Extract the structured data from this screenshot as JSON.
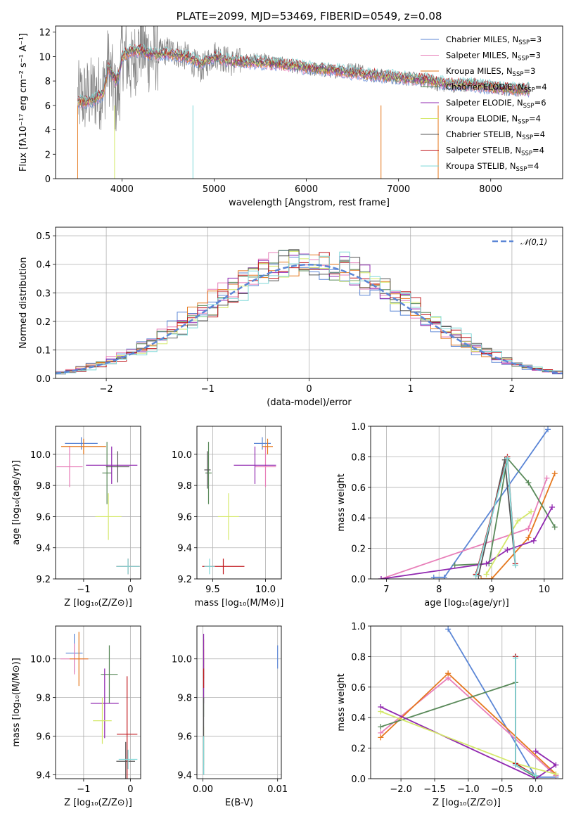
{
  "chart_data": [
    {
      "type": "line",
      "title": "PLATE=2099, MJD=53469, FIBERID=0549, z=0.08",
      "xlabel": "wavelength [Angstrom, rest frame]",
      "ylabel": "Flux [fλ10⁻¹⁷ erg cm⁻² s⁻¹ A⁻¹]",
      "xlim": [
        3280,
        8780
      ],
      "ylim": [
        0,
        12.5
      ],
      "xticks": [
        4000,
        5000,
        6000,
        7000,
        8000
      ],
      "yticks": [
        0,
        2,
        4,
        6,
        8,
        10,
        12
      ],
      "grid": false,
      "legend_position": "upper right",
      "legend": [
        "Chabrier MILES, N_SSP=3",
        "Salpeter MILES, N_SSP=3",
        "Kroupa MILES, N_SSP=3",
        "Chabrier ELODIE, N_SSP=4",
        "Salpeter ELODIE, N_SSP=6",
        "Kroupa ELODIE, N_SSP=4",
        "Chabrier STELIB, N_SSP=4",
        "Salpeter STELIB, N_SSP=4",
        "Kroupa STELIB, N_SSP=4"
      ],
      "legend_labels": [
        {
          "pre": "Chabrier MILES, N",
          "sub": "SSP",
          "post": "=3"
        },
        {
          "pre": "Salpeter MILES, N",
          "sub": "SSP",
          "post": "=3"
        },
        {
          "pre": "Kroupa MILES, N",
          "sub": "SSP",
          "post": "=3"
        },
        {
          "pre": "Chabrier ELODIE, N",
          "sub": "SSP",
          "post": "=4"
        },
        {
          "pre": "Salpeter ELODIE, N",
          "sub": "SSP",
          "post": "=6"
        },
        {
          "pre": "Kroupa ELODIE, N",
          "sub": "SSP",
          "post": "=4"
        },
        {
          "pre": "Chabrier STELIB, N",
          "sub": "SSP",
          "post": "=4"
        },
        {
          "pre": "Salpeter STELIB, N",
          "sub": "SSP",
          "post": "=4"
        },
        {
          "pre": "Kroupa STELIB, N",
          "sub": "SSP",
          "post": "=4"
        }
      ],
      "colors": [
        "#5b86d6",
        "#e87fb9",
        "#e5781e",
        "#5a8a5a",
        "#9028b0",
        "#d4e86a",
        "#555555",
        "#c0161c",
        "#7fd8d8"
      ],
      "observed_color": "#808080",
      "observed_knots": [
        [
          3520,
          6.5
        ],
        [
          3700,
          7.0
        ],
        [
          3800,
          7.2
        ],
        [
          3850,
          9.5
        ],
        [
          3933,
          6.5
        ],
        [
          3968,
          7.0
        ],
        [
          4000,
          10.5
        ],
        [
          4102,
          9.0
        ],
        [
          4200,
          11.0
        ],
        [
          4300,
          10.0
        ],
        [
          4500,
          10.5
        ],
        [
          4700,
          10.0
        ],
        [
          4861,
          9.0
        ],
        [
          5000,
          10.2
        ],
        [
          5200,
          9.5
        ],
        [
          5500,
          9.8
        ],
        [
          5800,
          9.3
        ],
        [
          6000,
          9.0
        ],
        [
          6300,
          8.8
        ],
        [
          6563,
          9.0
        ],
        [
          6700,
          8.5
        ],
        [
          7000,
          8.3
        ],
        [
          7300,
          8.0
        ],
        [
          7500,
          7.6
        ],
        [
          7800,
          7.7
        ],
        [
          8100,
          7.4
        ],
        [
          8300,
          7.3
        ],
        [
          8420,
          7.4
        ]
      ],
      "model_knots": [
        [
          3520,
          6.2
        ],
        [
          3700,
          6.5
        ],
        [
          3800,
          7.0
        ],
        [
          3850,
          9.2
        ],
        [
          3933,
          8.0
        ],
        [
          3968,
          8.5
        ],
        [
          4000,
          10.0
        ],
        [
          4102,
          10.5
        ],
        [
          4200,
          10.5
        ],
        [
          4300,
          10.2
        ],
        [
          4500,
          10.2
        ],
        [
          4700,
          10.0
        ],
        [
          4861,
          9.5
        ],
        [
          5000,
          10.0
        ],
        [
          5200,
          9.6
        ],
        [
          5500,
          9.5
        ],
        [
          5800,
          9.3
        ],
        [
          6000,
          9.1
        ],
        [
          6300,
          8.9
        ],
        [
          6563,
          8.6
        ],
        [
          6700,
          8.5
        ],
        [
          7000,
          8.3
        ],
        [
          7300,
          8.1
        ],
        [
          7500,
          7.8
        ],
        [
          7800,
          7.7
        ],
        [
          8100,
          7.4
        ],
        [
          8300,
          7.3
        ],
        [
          8420,
          7.3
        ]
      ],
      "model_drops": [
        [
          3520,
          0
        ],
        [
          3920,
          0
        ],
        [
          4770,
          0
        ],
        [
          6810,
          0
        ],
        [
          7430,
          0
        ]
      ]
    },
    {
      "type": "bar",
      "xlabel": "(data-model)/error",
      "ylabel": "Normed distribution",
      "xlim": [
        -2.5,
        2.5
      ],
      "ylim": [
        0,
        0.53
      ],
      "xticks": [
        -2,
        -1,
        0,
        1,
        2
      ],
      "xtick_labels": [
        "−2",
        "−1",
        "0",
        "1",
        "2"
      ],
      "yticks": [
        0,
        0.1,
        0.2,
        0.3,
        0.4,
        0.5
      ],
      "ytick_labels": [
        "0.0",
        "0.1",
        "0.2",
        "0.3",
        "0.4",
        "0.5"
      ],
      "grid": true,
      "legend_position": "upper right",
      "legend_label": "𝒩(0,1)",
      "gaussian_color": "#5b86d6",
      "bin_width": 0.1,
      "histogram_series": 9
    },
    {
      "type": "scatter",
      "xlabel": "Z [log₁₀(Z/Z⊙)]",
      "ylabel": "age  [log₁₀(age/yr)]",
      "xlim": [
        -1.6,
        0.22
      ],
      "ylim": [
        9.2,
        10.18
      ],
      "xticks": [
        -1,
        0
      ],
      "xtick_labels": [
        "−1",
        "0"
      ],
      "yticks": [
        9.2,
        9.4,
        9.6,
        9.8,
        10.0
      ],
      "ytick_labels": [
        "9.2",
        "9.4",
        "9.6",
        "9.8",
        "10.0"
      ],
      "grid": true,
      "errorbars": [
        {
          "x": -1.05,
          "xerr": 0.35,
          "y": 10.07,
          "yerr": 0.04,
          "series": 0
        },
        {
          "x": -1.3,
          "xerr": 0.28,
          "y": 9.92,
          "yerr": 0.13,
          "series": 1
        },
        {
          "x": -1.0,
          "xerr": 0.48,
          "y": 10.05,
          "yerr": 0.05,
          "series": 2
        },
        {
          "x": -0.5,
          "xerr": 0.1,
          "y": 9.88,
          "yerr": 0.2,
          "series": 3
        },
        {
          "x": -0.4,
          "xerr": 0.55,
          "y": 9.93,
          "yerr": 0.12,
          "series": 4
        },
        {
          "x": -0.47,
          "xerr": 0.28,
          "y": 9.6,
          "yerr": 0.15,
          "series": 5
        },
        {
          "x": -0.27,
          "xerr": 0.25,
          "y": 9.92,
          "yerr": 0.1,
          "series": 6
        },
        {
          "x": -0.05,
          "xerr": 0.25,
          "y": 9.28,
          "yerr": 0.05,
          "series": 7
        },
        {
          "x": -0.05,
          "xerr": 0.25,
          "y": 9.28,
          "yerr": 0.05,
          "series": 8
        }
      ]
    },
    {
      "type": "scatter",
      "xlabel": "mass [log₁₀(M/M⊙)]",
      "xlim": [
        9.35,
        10.15
      ],
      "ylim": [
        9.2,
        10.18
      ],
      "xticks": [
        9.5,
        10.0
      ],
      "xtick_labels": [
        "9.5",
        "10.0"
      ],
      "yticks": [
        9.2,
        9.4,
        9.6,
        9.8,
        10.0
      ],
      "ytick_labels": [
        "9.2",
        "9.4",
        "9.6",
        "9.8",
        "10.0"
      ],
      "grid": true,
      "errorbars": [
        {
          "x": 9.97,
          "xerr": 0.08,
          "y": 10.07,
          "yerr": 0.04,
          "series": 0
        },
        {
          "x": 10.0,
          "xerr": 0.1,
          "y": 9.92,
          "yerr": 0.13,
          "series": 1
        },
        {
          "x": 10.02,
          "xerr": 0.05,
          "y": 10.05,
          "yerr": 0.05,
          "series": 2
        },
        {
          "x": 9.46,
          "xerr": 0.03,
          "y": 9.88,
          "yerr": 0.2,
          "series": 3
        },
        {
          "x": 9.9,
          "xerr": 0.2,
          "y": 9.93,
          "yerr": 0.12,
          "series": 4
        },
        {
          "x": 9.65,
          "xerr": 0.1,
          "y": 9.6,
          "yerr": 0.15,
          "series": 5
        },
        {
          "x": 9.45,
          "xerr": 0.03,
          "y": 9.9,
          "yerr": 0.12,
          "series": 6
        },
        {
          "x": 9.6,
          "xerr": 0.2,
          "y": 9.28,
          "yerr": 0.05,
          "series": 7
        },
        {
          "x": 9.47,
          "xerr": 0.05,
          "y": 9.28,
          "yerr": 0.05,
          "series": 8
        }
      ]
    },
    {
      "type": "line",
      "xlabel": "age  [log₁₀(age/yr)]",
      "ylabel": "mass weight",
      "xlim": [
        6.7,
        10.35
      ],
      "ylim": [
        0,
        1
      ],
      "xticks": [
        7,
        8,
        9,
        10
      ],
      "xtick_labels": [
        "7",
        "8",
        "9",
        "10"
      ],
      "yticks": [
        0,
        0.2,
        0.4,
        0.6,
        0.8,
        1.0
      ],
      "ytick_labels": [
        "0.0",
        "0.2",
        "0.4",
        "0.6",
        "0.8",
        "1.0"
      ],
      "grid": true,
      "series": [
        {
          "x": [
            7.9,
            8.1,
            10.07
          ],
          "y": [
            0.01,
            0.01,
            0.98
          ]
        },
        {
          "x": [
            6.9,
            9.7,
            10.05
          ],
          "y": [
            0.0,
            0.33,
            0.66
          ]
        },
        {
          "x": [
            8.8,
            9.0,
            9.7,
            10.2
          ],
          "y": [
            0.0,
            0.0,
            0.27,
            0.69
          ]
        },
        {
          "x": [
            8.3,
            8.95,
            9.3,
            9.7,
            10.2
          ],
          "y": [
            0.09,
            0.1,
            0.79,
            0.63,
            0.34
          ]
        },
        {
          "x": [
            6.9,
            8.9,
            9.3,
            9.8,
            10.15
          ],
          "y": [
            0.0,
            0.1,
            0.19,
            0.25,
            0.47
          ]
        },
        {
          "x": [
            8.9,
            9.5,
            9.75
          ],
          "y": [
            0.03,
            0.38,
            0.44
          ]
        },
        {
          "x": [
            8.75,
            9.25,
            9.45
          ],
          "y": [
            0.02,
            0.78,
            0.09
          ]
        },
        {
          "x": [
            8.7,
            9.3,
            9.45
          ],
          "y": [
            0.03,
            0.8,
            0.1
          ]
        },
        {
          "x": [
            8.7,
            9.3,
            9.45
          ],
          "y": [
            0.02,
            0.79,
            0.09
          ]
        }
      ]
    },
    {
      "type": "scatter",
      "xlabel": "Z [log₁₀(Z/Z⊙)]",
      "ylabel": "mass [log₁₀(M/M⊙)]",
      "xlim": [
        -1.6,
        0.22
      ],
      "ylim": [
        9.38,
        10.17
      ],
      "xticks": [
        -1,
        0
      ],
      "xtick_labels": [
        "−1",
        "0"
      ],
      "yticks": [
        9.4,
        9.6,
        9.8,
        10.0
      ],
      "ytick_labels": [
        "9.4",
        "9.6",
        "9.8",
        "10.0"
      ],
      "grid": true,
      "errorbars": [
        {
          "x": -1.2,
          "xerr": 0.18,
          "y": 10.03,
          "yerr": 0.1,
          "series": 0
        },
        {
          "x": -1.2,
          "xerr": 0.3,
          "y": 10.0,
          "yerr": 0.08,
          "series": 1
        },
        {
          "x": -1.1,
          "xerr": 0.2,
          "y": 10.0,
          "yerr": 0.14,
          "series": 2
        },
        {
          "x": -0.45,
          "xerr": 0.18,
          "y": 9.92,
          "yerr": 0.15,
          "series": 3
        },
        {
          "x": -0.55,
          "xerr": 0.3,
          "y": 9.77,
          "yerr": 0.18,
          "series": 4
        },
        {
          "x": -0.6,
          "xerr": 0.2,
          "y": 9.68,
          "yerr": 0.12,
          "series": 5
        },
        {
          "x": -0.1,
          "xerr": 0.2,
          "y": 9.47,
          "yerr": 0.1,
          "series": 6
        },
        {
          "x": -0.07,
          "xerr": 0.22,
          "y": 9.61,
          "yerr": 0.3,
          "series": 7
        },
        {
          "x": -0.05,
          "xerr": 0.2,
          "y": 9.48,
          "yerr": 0.05,
          "series": 8
        }
      ]
    },
    {
      "type": "scatter",
      "xlabel": "E(B-V)",
      "xlim": [
        -0.0008,
        0.0105
      ],
      "ylim": [
        9.38,
        10.17
      ],
      "xticks": [
        0.0,
        0.01
      ],
      "xtick_labels": [
        "0.00",
        "0.01"
      ],
      "yticks": [
        9.4,
        9.6,
        9.8,
        10.0
      ],
      "ytick_labels": [
        "9.4",
        "9.6",
        "9.8",
        "10.0"
      ],
      "grid": true,
      "errorbars": [
        {
          "x": 0.01,
          "y": 10.01,
          "yerr": 0.06,
          "series": 0
        },
        {
          "x": 0.0001,
          "y": 9.95,
          "yerr": 0.1,
          "series": 1
        },
        {
          "x": 0.0001,
          "y": 10.0,
          "yerr": 0.1,
          "series": 2
        },
        {
          "x": 0.0001,
          "y": 9.85,
          "yerr": 0.15,
          "series": 3
        },
        {
          "x": 0.0001,
          "y": 9.95,
          "yerr": 0.18,
          "series": 4
        },
        {
          "x": 0.0001,
          "y": 9.55,
          "yerr": 0.1,
          "series": 5
        },
        {
          "x": 0.0001,
          "y": 9.6,
          "yerr": 0.2,
          "series": 6
        },
        {
          "x": 0.0001,
          "y": 9.9,
          "yerr": 0.05,
          "series": 7
        },
        {
          "x": 0.0001,
          "y": 9.5,
          "yerr": 0.1,
          "series": 8
        }
      ]
    },
    {
      "type": "line",
      "xlabel": "Z [log₁₀(Z/Z⊙)]",
      "ylabel": "mass weight",
      "xlim": [
        -2.45,
        0.4
      ],
      "ylim": [
        0,
        1
      ],
      "xticks": [
        -2.0,
        -1.5,
        -1.0,
        -0.5,
        0.0
      ],
      "xtick_labels": [
        "−2.0",
        "−1.5",
        "−1.0",
        "−0.5",
        "0.0"
      ],
      "yticks": [
        0,
        0.2,
        0.4,
        0.6,
        0.8,
        1.0
      ],
      "ytick_labels": [
        "0.0",
        "0.2",
        "0.4",
        "0.6",
        "0.8",
        "1.0"
      ],
      "grid": true,
      "series": [
        {
          "x": [
            -1.3,
            0.0,
            0.3
          ],
          "y": [
            0.98,
            0.01,
            0.01
          ]
        },
        {
          "x": [
            -2.3,
            -1.3,
            0.3
          ],
          "y": [
            0.3,
            0.66,
            0.02
          ]
        },
        {
          "x": [
            -2.3,
            -1.3,
            0.3
          ],
          "y": [
            0.27,
            0.69,
            0.03
          ]
        },
        {
          "x": [
            -2.3,
            -0.3,
            -0.3,
            0.0
          ],
          "y": [
            0.34,
            0.63,
            0.09,
            0.01
          ]
        },
        {
          "x": [
            -2.3,
            0.0,
            0.3,
            0.0
          ],
          "y": [
            0.47,
            0.0,
            0.09,
            0.18
          ]
        },
        {
          "x": [
            -2.3,
            -0.3,
            0.3
          ],
          "y": [
            0.44,
            0.1,
            0.03
          ]
        },
        {
          "x": [
            -0.3,
            -0.3,
            0.0
          ],
          "y": [
            0.8,
            0.09,
            0.02
          ]
        },
        {
          "x": [
            -0.3,
            -0.3,
            0.0
          ],
          "y": [
            0.8,
            0.1,
            0.02
          ]
        },
        {
          "x": [
            -0.3,
            -0.3,
            0.0
          ],
          "y": [
            0.79,
            0.09,
            0.02
          ]
        }
      ]
    }
  ]
}
